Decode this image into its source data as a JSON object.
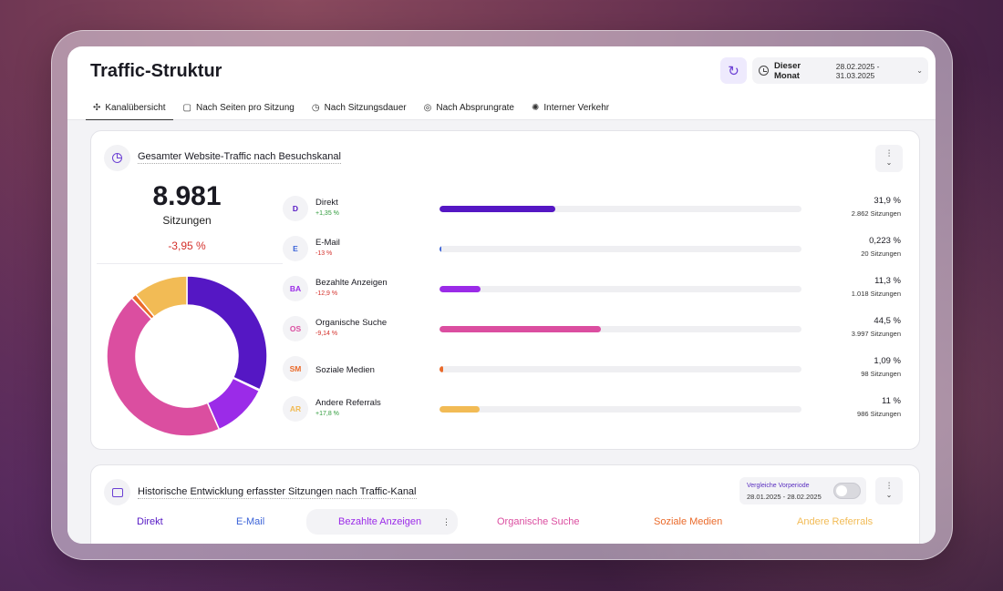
{
  "header": {
    "title": "Traffic-Struktur",
    "date_label": "Dieser Monat",
    "date_range": "28.02.2025 - 31.03.2025"
  },
  "tabs": [
    {
      "label": "Kanalübersicht",
      "icon": "network-icon",
      "active": true
    },
    {
      "label": "Nach Seiten pro Sitzung",
      "icon": "pages-icon",
      "active": false
    },
    {
      "label": "Nach Sitzungsdauer",
      "icon": "timer-icon",
      "active": false
    },
    {
      "label": "Nach Absprungrate",
      "icon": "bounce-icon",
      "active": false
    },
    {
      "label": "Interner Verkehr",
      "icon": "internal-icon",
      "active": false
    }
  ],
  "overview": {
    "title": "Gesamter Website-Traffic nach Besuchskanal",
    "total_value": "8.981",
    "total_label": "Sitzungen",
    "total_change": "-3,95 %",
    "channels": [
      {
        "abbr": "D",
        "name": "Direkt",
        "change": "+1,35 %",
        "trend": "pos",
        "share": 31.9,
        "pct": "31,9 %",
        "sessions": "2.862 Sitzungen",
        "color": "#5517c4"
      },
      {
        "abbr": "E",
        "name": "E-Mail",
        "change": "-13 %",
        "trend": "neg",
        "share": 0.223,
        "pct": "0,223 %",
        "sessions": "20 Sitzungen",
        "color": "#3b63d8"
      },
      {
        "abbr": "BA",
        "name": "Bezahlte Anzeigen",
        "change": "-12,9 %",
        "trend": "neg",
        "share": 11.3,
        "pct": "11,3 %",
        "sessions": "1.018 Sitzungen",
        "color": "#9b2be8"
      },
      {
        "abbr": "OS",
        "name": "Organische Suche",
        "change": "-9,14 %",
        "trend": "neg",
        "share": 44.5,
        "pct": "44,5 %",
        "sessions": "3.997 Sitzungen",
        "color": "#db4ea0"
      },
      {
        "abbr": "SM",
        "name": "Soziale Medien",
        "change": "",
        "trend": "none",
        "share": 1.09,
        "pct": "1,09 %",
        "sessions": "98 Sitzungen",
        "color": "#ea6a2a"
      },
      {
        "abbr": "AR",
        "name": "Andere Referrals",
        "change": "+17,8 %",
        "trend": "pos",
        "share": 11,
        "pct": "11 %",
        "sessions": "986 Sitzungen",
        "color": "#f2bb55"
      }
    ]
  },
  "history": {
    "title": "Historische Entwicklung erfasster Sitzungen nach Traffic-Kanal",
    "compare_label": "Vergleiche Vorperiode",
    "compare_range": "28.01.2025 - 28.02.2025",
    "legend": [
      {
        "label": "Direkt",
        "color": "#5517c4"
      },
      {
        "label": "E-Mail",
        "color": "#3b63d8"
      },
      {
        "label": "Bezahlte Anzeigen",
        "color": "#9b2be8"
      },
      {
        "label": "Organische Suche",
        "color": "#db4ea0"
      },
      {
        "label": "Soziale Medien",
        "color": "#ea6a2a"
      },
      {
        "label": "Andere Referrals",
        "color": "#f2bb55"
      }
    ],
    "more_icon": "⋮"
  }
}
